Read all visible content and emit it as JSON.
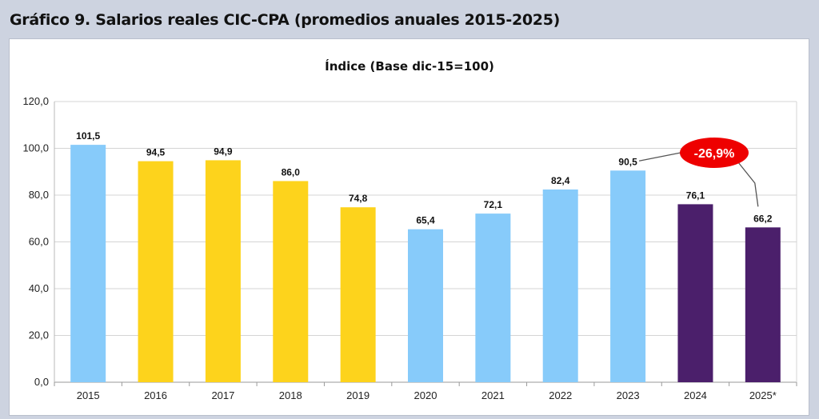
{
  "header": {
    "title": "Gráfico 9. Salarios reales CIC-CPA (promedios anuales 2015-2025)"
  },
  "chart_data": {
    "type": "bar",
    "title": "Índice (Base dic-15=100)",
    "categories": [
      "2015",
      "2016",
      "2017",
      "2018",
      "2019",
      "2020",
      "2021",
      "2022",
      "2023",
      "2024",
      "2025*"
    ],
    "values": [
      101.5,
      94.5,
      94.9,
      86.0,
      74.8,
      65.4,
      72.1,
      82.4,
      90.5,
      76.1,
      66.2
    ],
    "value_labels": [
      "101,5",
      "94,5",
      "94,9",
      "86,0",
      "74,8",
      "65,4",
      "72,1",
      "82,4",
      "90,5",
      "76,1",
      "66,2"
    ],
    "bar_colors": [
      "#87cbfa",
      "#fdd31c",
      "#fdd31c",
      "#fdd31c",
      "#fdd31c",
      "#87cbfa",
      "#87cbfa",
      "#87cbfa",
      "#87cbfa",
      "#4b1f6b",
      "#4b1f6b"
    ],
    "ylim": [
      0,
      120
    ],
    "yticks": [
      0,
      20,
      40,
      60,
      80,
      100,
      120
    ],
    "ytick_labels": [
      "0,0",
      "20,0",
      "40,0",
      "60,0",
      "80,0",
      "100,0",
      "120,0"
    ],
    "grid": true,
    "annotation": {
      "text": "-26,9%",
      "from_category": "2023",
      "to_category": "2025*",
      "color": "#ee0000"
    }
  }
}
